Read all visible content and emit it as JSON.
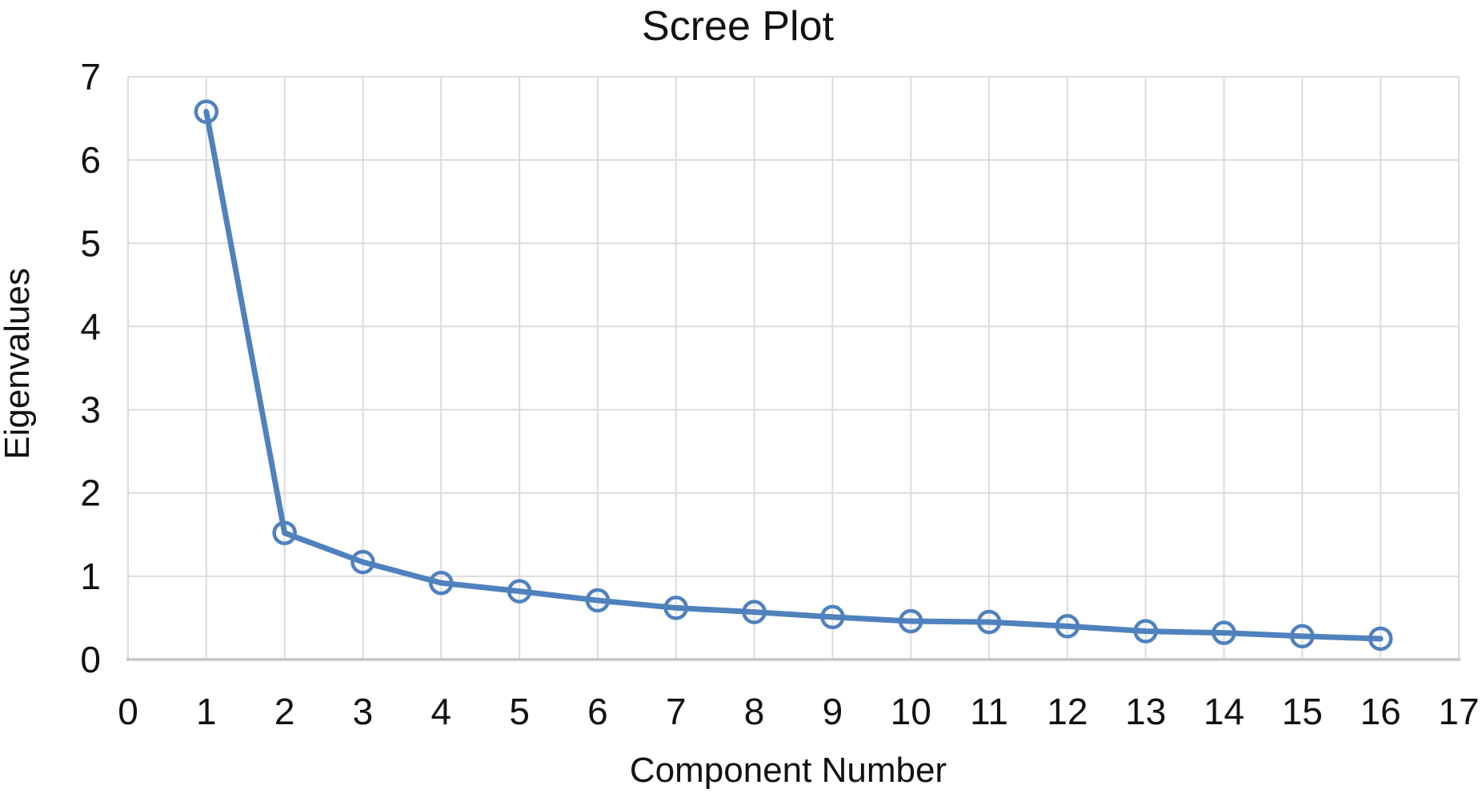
{
  "chart_data": {
    "type": "line",
    "title": "Scree Plot",
    "xlabel": "Component Number",
    "ylabel": "Eigenvalues",
    "series": [
      {
        "name": "Eigenvalues",
        "x": [
          1,
          2,
          3,
          4,
          5,
          6,
          7,
          8,
          9,
          10,
          11,
          12,
          13,
          14,
          15,
          16
        ],
        "values": [
          6.58,
          1.52,
          1.17,
          0.92,
          0.82,
          0.71,
          0.62,
          0.57,
          0.51,
          0.46,
          0.45,
          0.4,
          0.34,
          0.32,
          0.28,
          0.25
        ]
      }
    ],
    "xlim": [
      0,
      17
    ],
    "ylim": [
      0,
      7
    ],
    "x_ticks": [
      0,
      1,
      2,
      3,
      4,
      5,
      6,
      7,
      8,
      9,
      10,
      11,
      12,
      13,
      14,
      15,
      16,
      17
    ],
    "y_ticks": [
      0,
      1,
      2,
      3,
      4,
      5,
      6,
      7
    ],
    "grid": true,
    "legend": false,
    "marker": "open-circle",
    "colors": {
      "line": "#4F81BD",
      "marker_stroke": "#4F81BD",
      "gridline": "#DCDCDC",
      "axis_line": "#C6C6C6",
      "text": "#111111",
      "background": "#FFFFFF"
    }
  }
}
